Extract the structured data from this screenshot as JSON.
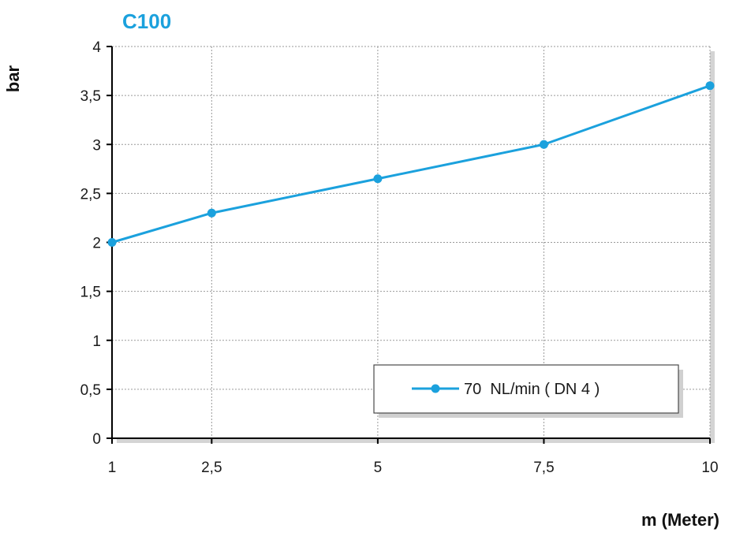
{
  "chart_data": {
    "type": "line",
    "title": "C100",
    "xlabel": "m (Meter)",
    "ylabel": "bar",
    "x": [
      1,
      2.5,
      5,
      7.5,
      10
    ],
    "x_tick_labels": [
      "1",
      "2,5",
      "5",
      "7,5",
      "10"
    ],
    "xlim": [
      1,
      10
    ],
    "ylim": [
      0,
      4
    ],
    "y_ticks": [
      0,
      0.5,
      1,
      1.5,
      2,
      2.5,
      3,
      3.5,
      4
    ],
    "y_tick_labels": [
      "0",
      "0,5",
      "1",
      "1,5",
      "2",
      "2,5",
      "3",
      "3,5",
      "4"
    ],
    "grid": true,
    "legend_position": "bottom-right",
    "series": [
      {
        "name": "70  NL/min ( DN 4 )",
        "color": "#1ba1dd",
        "values": [
          2.0,
          2.3,
          2.65,
          3.0,
          3.6
        ]
      }
    ],
    "colors": {
      "title": "#1ba1dd",
      "line": "#1ba1dd",
      "grid": "#9a9a9a",
      "axis": "#000000"
    }
  }
}
